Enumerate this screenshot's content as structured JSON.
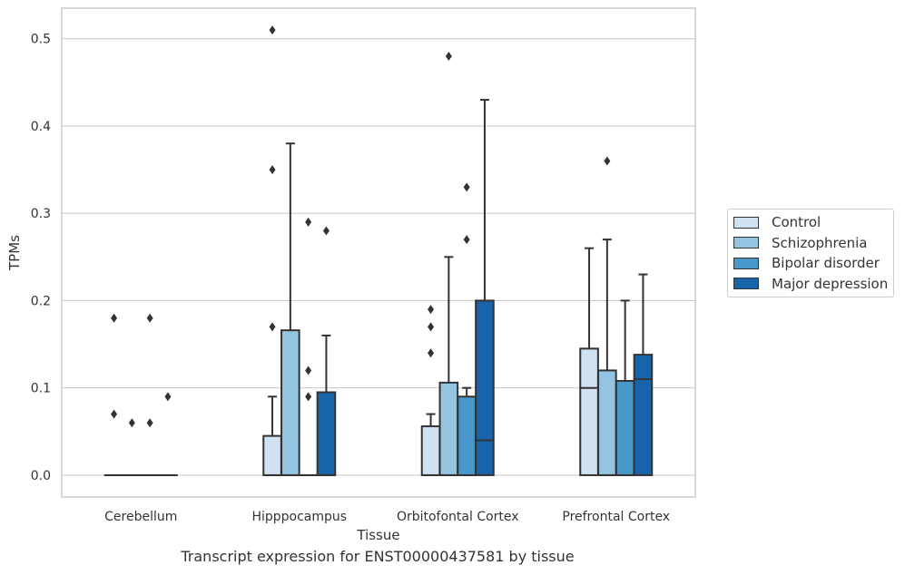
{
  "chart_data": {
    "type": "box",
    "xlabel": "Tissue",
    "ylabel": "TPMs",
    "caption": "Transcript expression for ENST00000437581 by tissue",
    "ylim": [
      -0.025,
      0.535
    ],
    "yticks": [
      0.0,
      0.1,
      0.2,
      0.3,
      0.4,
      0.5
    ],
    "ytick_labels": [
      "0.0",
      "0.1",
      "0.2",
      "0.3",
      "0.4",
      "0.5"
    ],
    "grid": "horizontal",
    "legend_position": "right",
    "categories": [
      "Cerebellum",
      "Hipppocampus",
      "Orbitofontal Cortex",
      "Prefrontal Cortex"
    ],
    "series": [
      {
        "name": "Control",
        "color": "#d0e1f2",
        "boxes": [
          {
            "q1": 0.0,
            "median": 0.0,
            "q3": 0.0,
            "whislo": 0.0,
            "whishi": 0.0,
            "fliers": [
              0.18,
              0.07
            ]
          },
          {
            "q1": 0.0,
            "median": 0.0,
            "q3": 0.045,
            "whislo": 0.0,
            "whishi": 0.09,
            "fliers": [
              0.51,
              0.35,
              0.17
            ]
          },
          {
            "q1": 0.0,
            "median": 0.0,
            "q3": 0.056,
            "whislo": 0.0,
            "whishi": 0.07,
            "fliers": [
              0.19,
              0.17,
              0.14
            ]
          },
          {
            "q1": 0.0,
            "median": 0.1,
            "q3": 0.145,
            "whislo": 0.0,
            "whishi": 0.26,
            "fliers": []
          }
        ]
      },
      {
        "name": "Schizophrenia",
        "color": "#94c4df",
        "boxes": [
          {
            "q1": 0.0,
            "median": 0.0,
            "q3": 0.0,
            "whislo": 0.0,
            "whishi": 0.0,
            "fliers": [
              0.06
            ]
          },
          {
            "q1": 0.0,
            "median": 0.0,
            "q3": 0.166,
            "whislo": 0.0,
            "whishi": 0.38,
            "fliers": []
          },
          {
            "q1": 0.0,
            "median": 0.0,
            "q3": 0.106,
            "whislo": 0.0,
            "whishi": 0.25,
            "fliers": [
              0.48
            ]
          },
          {
            "q1": 0.0,
            "median": 0.0,
            "q3": 0.12,
            "whislo": 0.0,
            "whishi": 0.27,
            "fliers": [
              0.36
            ]
          }
        ]
      },
      {
        "name": "Bipolar disorder",
        "color": "#4a98c9",
        "boxes": [
          {
            "q1": 0.0,
            "median": 0.0,
            "q3": 0.0,
            "whislo": 0.0,
            "whishi": 0.0,
            "fliers": [
              0.18,
              0.06
            ]
          },
          {
            "q1": 0.0,
            "median": 0.0,
            "q3": 0.0,
            "whislo": 0.0,
            "whishi": 0.0,
            "fliers": [
              0.29,
              0.12,
              0.09
            ]
          },
          {
            "q1": 0.0,
            "median": 0.0,
            "q3": 0.09,
            "whislo": 0.0,
            "whishi": 0.1,
            "fliers": [
              0.33,
              0.27
            ]
          },
          {
            "q1": 0.0,
            "median": 0.0,
            "q3": 0.108,
            "whislo": 0.0,
            "whishi": 0.2,
            "fliers": []
          }
        ]
      },
      {
        "name": "Major depression",
        "color": "#1764ab",
        "boxes": [
          {
            "q1": 0.0,
            "median": 0.0,
            "q3": 0.0,
            "whislo": 0.0,
            "whishi": 0.0,
            "fliers": [
              0.09
            ]
          },
          {
            "q1": 0.0,
            "median": 0.0,
            "q3": 0.095,
            "whislo": 0.0,
            "whishi": 0.16,
            "fliers": [
              0.28
            ]
          },
          {
            "q1": 0.0,
            "median": 0.04,
            "q3": 0.2,
            "whislo": 0.0,
            "whishi": 0.43,
            "fliers": []
          },
          {
            "q1": 0.0,
            "median": 0.11,
            "q3": 0.138,
            "whislo": 0.0,
            "whishi": 0.23,
            "fliers": []
          }
        ]
      }
    ]
  }
}
